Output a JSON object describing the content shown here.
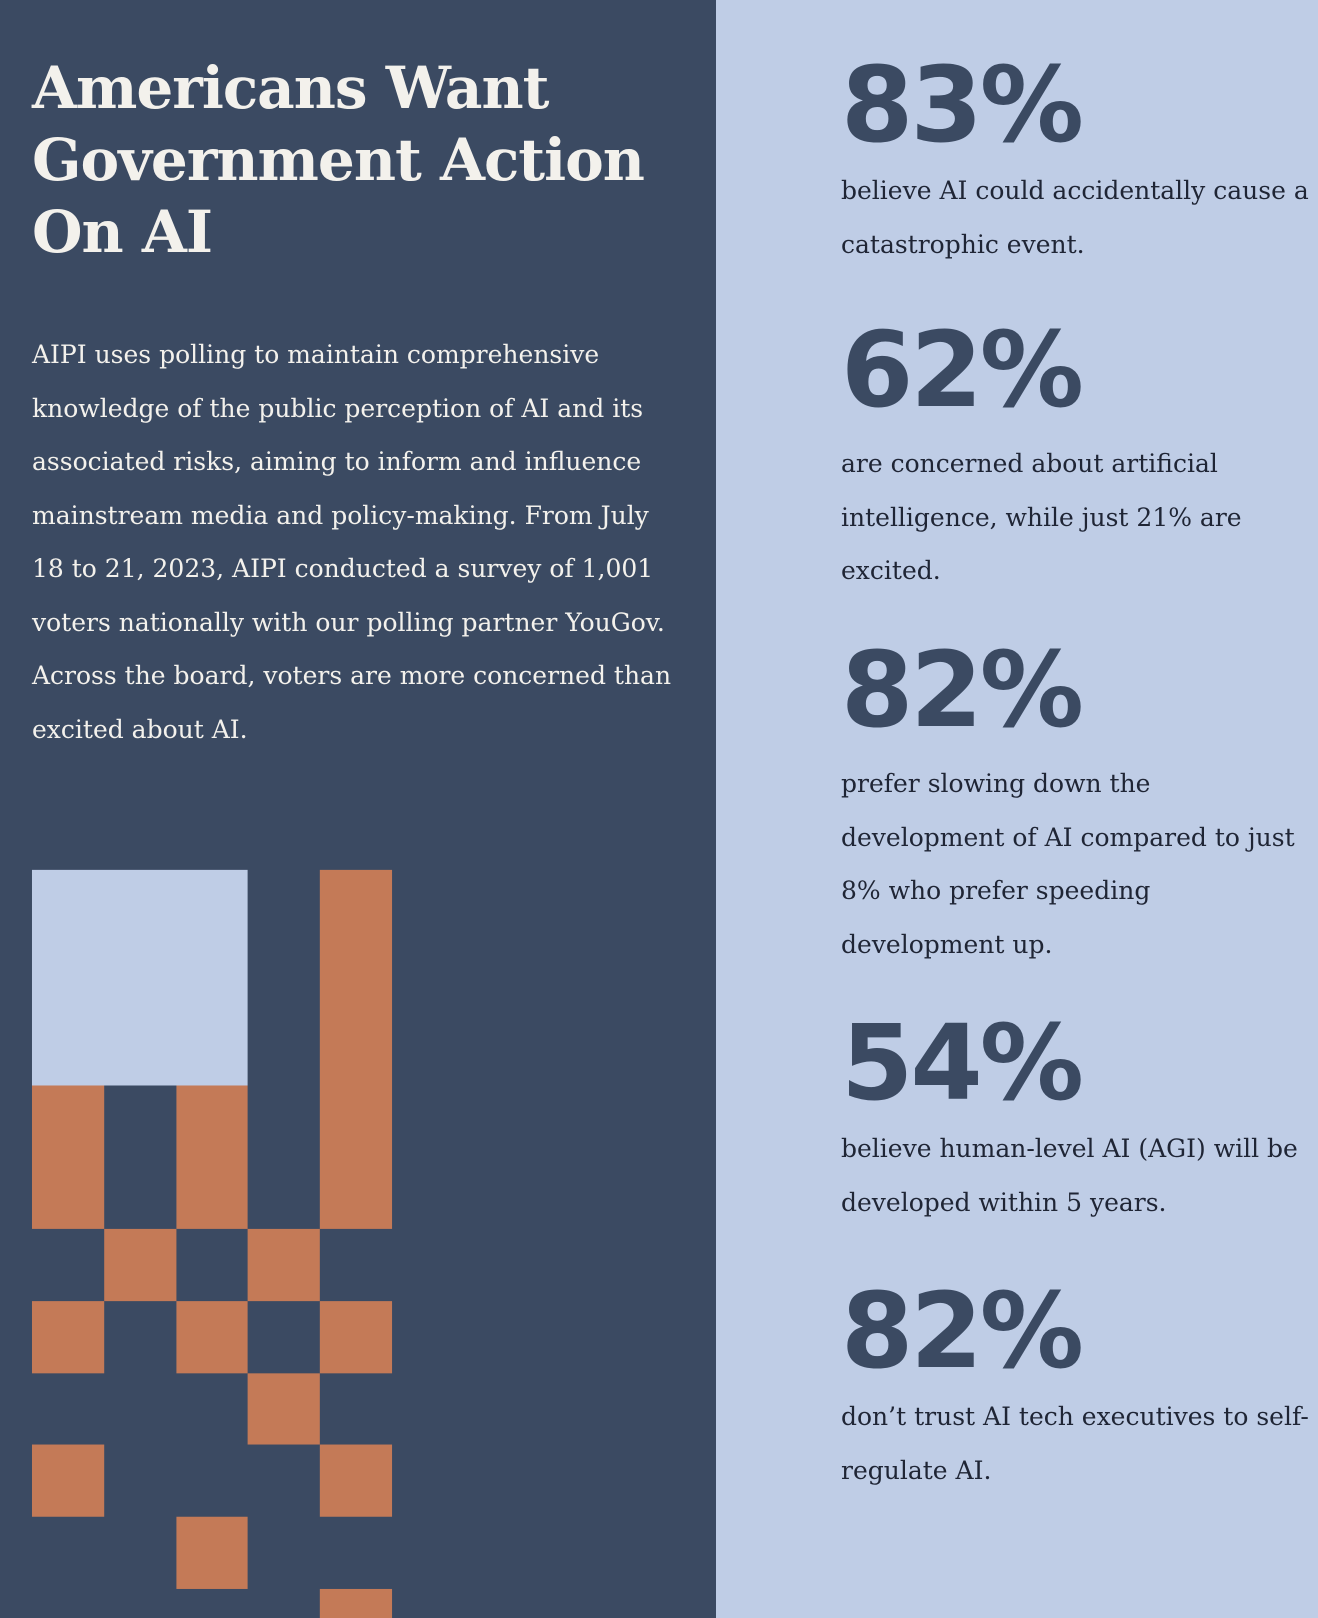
{
  "header": {
    "title": "Americans Want Government Action On AI"
  },
  "intro": "AIPI uses polling to maintain comprehensive knowledge of the public perception of AI and its associated risks, aiming to inform and influence mainstream media and policy-making. From July 18 to 21, 2023, AIPI conducted a survey of 1,001 voters nationally with our polling partner YouGov. Across the board, voters are more concerned than excited about AI.",
  "stats": [
    {
      "figure": "83%",
      "text": "believe AI could accidentally cause a catastrophic event."
    },
    {
      "figure": "62%",
      "text": "are concerned about artificial intelligence, while just 21% are excited."
    },
    {
      "figure": "82%",
      "text": "prefer slowing down the development of AI compared to just 8% who prefer speeding development up."
    },
    {
      "figure": "54%",
      "text": "believe human-level AI (AGI) will be developed within 5 years."
    },
    {
      "figure": "82%",
      "text": "don’t trust AI tech executives to self-regulate AI."
    }
  ]
}
